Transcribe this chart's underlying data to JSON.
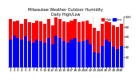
{
  "title": "Milwaukee Weather Outdoor Humidity",
  "subtitle": "Daily High/Low",
  "high_color": "#ff0000",
  "low_color": "#0000ff",
  "background_color": "#ffffff",
  "grid_color": "#cccccc",
  "ylim": [
    0,
    100
  ],
  "ylabel_right_ticks": [
    20,
    40,
    60,
    80,
    100
  ],
  "months": [
    "1",
    "2",
    "3",
    "4",
    "5",
    "6",
    "7",
    "8",
    "9",
    "10",
    "11",
    "12",
    "13",
    "14",
    "15",
    "16",
    "17",
    "18",
    "19",
    "20",
    "21",
    "22",
    "23",
    "24",
    "25",
    "26",
    "27",
    "28",
    "29",
    "30"
  ],
  "highs": [
    95,
    90,
    92,
    85,
    95,
    88,
    87,
    92,
    90,
    85,
    95,
    82,
    98,
    95,
    90,
    88,
    92,
    95,
    88,
    90,
    92,
    85,
    78,
    72,
    85,
    90,
    88,
    82,
    80,
    85
  ],
  "lows": [
    55,
    62,
    58,
    55,
    60,
    52,
    48,
    55,
    52,
    48,
    58,
    45,
    62,
    58,
    52,
    48,
    55,
    58,
    50,
    52,
    55,
    45,
    30,
    28,
    42,
    55,
    50,
    40,
    35,
    42
  ]
}
